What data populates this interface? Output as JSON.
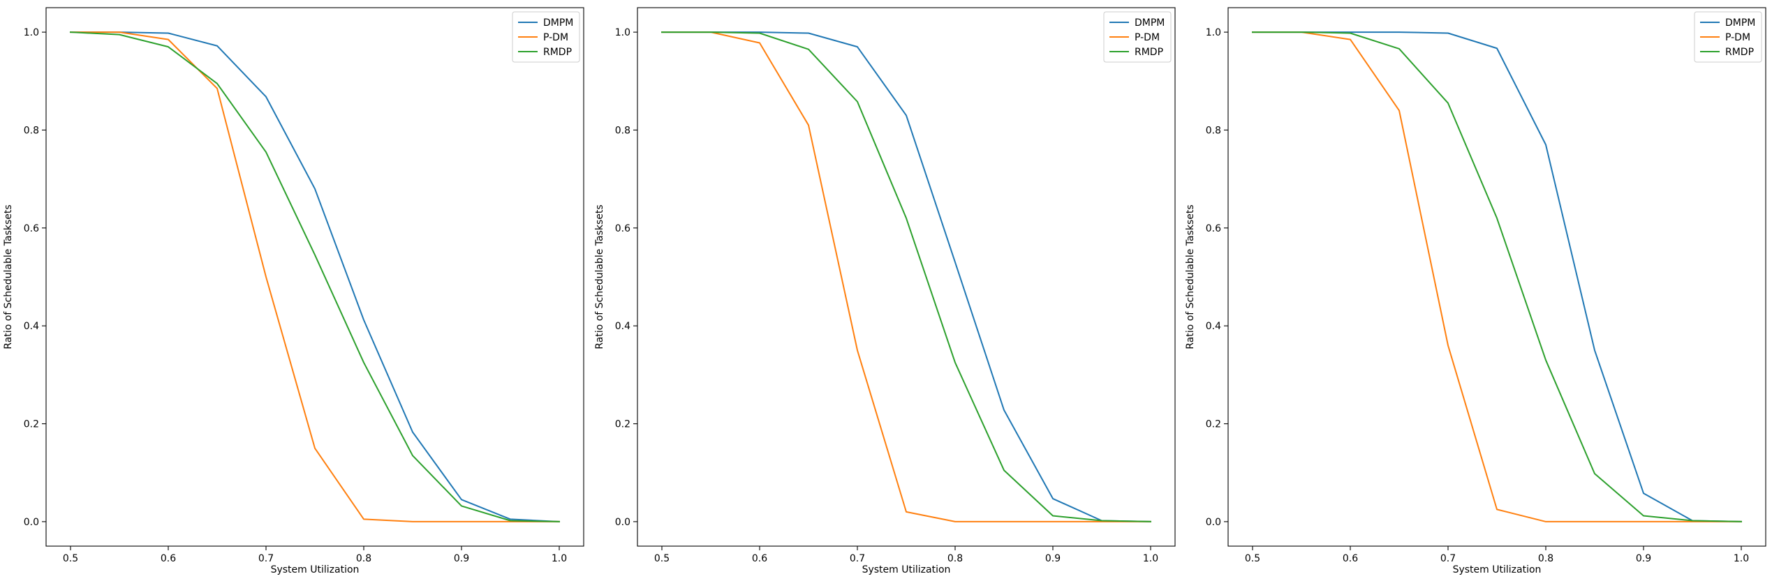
{
  "chart_data": [
    {
      "type": "line",
      "xlabel": "System Utilization",
      "ylabel": "Ratio of Schedulable Tasksets",
      "xlim": [
        0.475,
        1.025
      ],
      "ylim": [
        -0.05,
        1.05
      ],
      "xticks": [
        0.5,
        0.6,
        0.7,
        0.8,
        0.9,
        1.0
      ],
      "xtick_labels": [
        "0.5",
        "0.6",
        "0.7",
        "0.8",
        "0.9",
        "1.0"
      ],
      "yticks": [
        0.0,
        0.2,
        0.4,
        0.6,
        0.8,
        1.0
      ],
      "ytick_labels": [
        "0.0",
        "0.2",
        "0.4",
        "0.6",
        "0.8",
        "1.0"
      ],
      "grid": false,
      "legend_position": "top-right",
      "x": [
        0.5,
        0.55,
        0.6,
        0.65,
        0.7,
        0.75,
        0.8,
        0.85,
        0.9,
        0.95,
        1.0
      ],
      "series": [
        {
          "name": "DMPM",
          "color": "#1f77b4",
          "values": [
            1.0,
            1.0,
            0.998,
            0.972,
            0.868,
            0.68,
            0.412,
            0.183,
            0.045,
            0.005,
            0.0
          ]
        },
        {
          "name": "P-DM",
          "color": "#ff7f0e",
          "values": [
            1.0,
            1.0,
            0.985,
            0.885,
            0.5,
            0.15,
            0.005,
            0.0,
            0.0,
            0.0,
            0.0
          ]
        },
        {
          "name": "RMDP",
          "color": "#2ca02c",
          "values": [
            1.0,
            0.995,
            0.97,
            0.895,
            0.755,
            0.545,
            0.325,
            0.135,
            0.032,
            0.002,
            0.0
          ]
        }
      ]
    },
    {
      "type": "line",
      "xlabel": "System Utilization",
      "ylabel": "Ratio of Schedulable Tasksets",
      "xlim": [
        0.475,
        1.025
      ],
      "ylim": [
        -0.05,
        1.05
      ],
      "xticks": [
        0.5,
        0.6,
        0.7,
        0.8,
        0.9,
        1.0
      ],
      "xtick_labels": [
        "0.5",
        "0.6",
        "0.7",
        "0.8",
        "0.9",
        "1.0"
      ],
      "yticks": [
        0.0,
        0.2,
        0.4,
        0.6,
        0.8,
        1.0
      ],
      "ytick_labels": [
        "0.0",
        "0.2",
        "0.4",
        "0.6",
        "0.8",
        "1.0"
      ],
      "grid": false,
      "legend_position": "top-right",
      "x": [
        0.5,
        0.55,
        0.6,
        0.65,
        0.7,
        0.75,
        0.8,
        0.85,
        0.9,
        0.95,
        1.0
      ],
      "series": [
        {
          "name": "DMPM",
          "color": "#1f77b4",
          "values": [
            1.0,
            1.0,
            1.0,
            0.998,
            0.97,
            0.83,
            0.53,
            0.228,
            0.047,
            0.002,
            0.0
          ]
        },
        {
          "name": "P-DM",
          "color": "#ff7f0e",
          "values": [
            1.0,
            1.0,
            0.978,
            0.81,
            0.35,
            0.02,
            0.0,
            0.0,
            0.0,
            0.0,
            0.0
          ]
        },
        {
          "name": "RMDP",
          "color": "#2ca02c",
          "values": [
            1.0,
            1.0,
            0.998,
            0.965,
            0.858,
            0.62,
            0.325,
            0.105,
            0.012,
            0.002,
            0.0
          ]
        }
      ]
    },
    {
      "type": "line",
      "xlabel": "System Utilization",
      "ylabel": "Ratio of Schedulable Tasksets",
      "xlim": [
        0.475,
        1.025
      ],
      "ylim": [
        -0.05,
        1.05
      ],
      "xticks": [
        0.5,
        0.6,
        0.7,
        0.8,
        0.9,
        1.0
      ],
      "xtick_labels": [
        "0.5",
        "0.6",
        "0.7",
        "0.8",
        "0.9",
        "1.0"
      ],
      "yticks": [
        0.0,
        0.2,
        0.4,
        0.6,
        0.8,
        1.0
      ],
      "ytick_labels": [
        "0.0",
        "0.2",
        "0.4",
        "0.6",
        "0.8",
        "1.0"
      ],
      "grid": false,
      "legend_position": "top-right",
      "x": [
        0.5,
        0.55,
        0.6,
        0.65,
        0.7,
        0.75,
        0.8,
        0.85,
        0.9,
        0.95,
        1.0
      ],
      "series": [
        {
          "name": "DMPM",
          "color": "#1f77b4",
          "values": [
            1.0,
            1.0,
            1.0,
            1.0,
            0.998,
            0.967,
            0.77,
            0.35,
            0.058,
            0.002,
            0.0
          ]
        },
        {
          "name": "P-DM",
          "color": "#ff7f0e",
          "values": [
            1.0,
            1.0,
            0.985,
            0.84,
            0.36,
            0.025,
            0.0,
            0.0,
            0.0,
            0.0,
            0.0
          ]
        },
        {
          "name": "RMDP",
          "color": "#2ca02c",
          "values": [
            1.0,
            1.0,
            0.998,
            0.966,
            0.855,
            0.62,
            0.33,
            0.098,
            0.012,
            0.002,
            0.0
          ]
        }
      ]
    }
  ]
}
